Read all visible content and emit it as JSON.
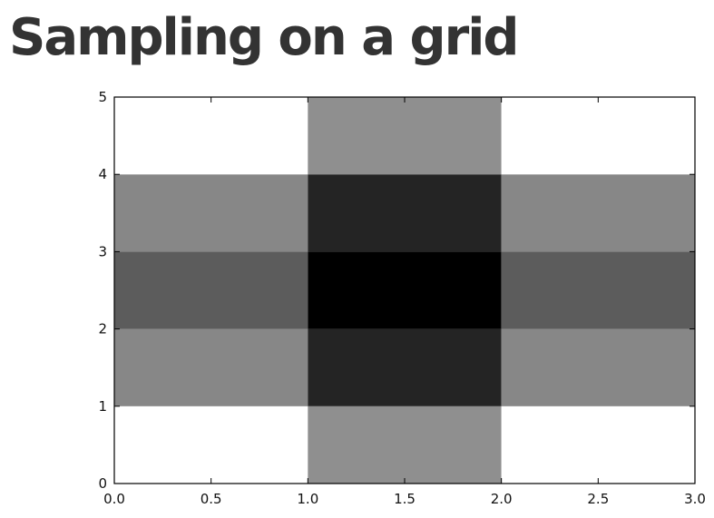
{
  "slide": {
    "title": "Sampling on a grid"
  },
  "chart_data": {
    "type": "heatmap",
    "title": "",
    "xlabel": "",
    "ylabel": "",
    "xlim": [
      0.0,
      3.0
    ],
    "ylim": [
      0,
      5
    ],
    "x_ticks": [
      "0.0",
      "0.5",
      "1.0",
      "1.5",
      "2.0",
      "2.5",
      "3.0"
    ],
    "y_ticks": [
      "0",
      "1",
      "2",
      "3",
      "4",
      "5"
    ],
    "x_edges": [
      0,
      1,
      2,
      3
    ],
    "y_edges": [
      0,
      1,
      2,
      3,
      4,
      5
    ],
    "colormap": "gray_reversed",
    "values": [
      [
        0.0,
        0.44,
        0.0
      ],
      [
        0.47,
        0.86,
        0.47
      ],
      [
        0.64,
        1.0,
        0.64
      ],
      [
        0.47,
        0.86,
        0.47
      ],
      [
        0.0,
        0.44,
        0.0
      ]
    ],
    "grid": false,
    "legend": "none"
  }
}
